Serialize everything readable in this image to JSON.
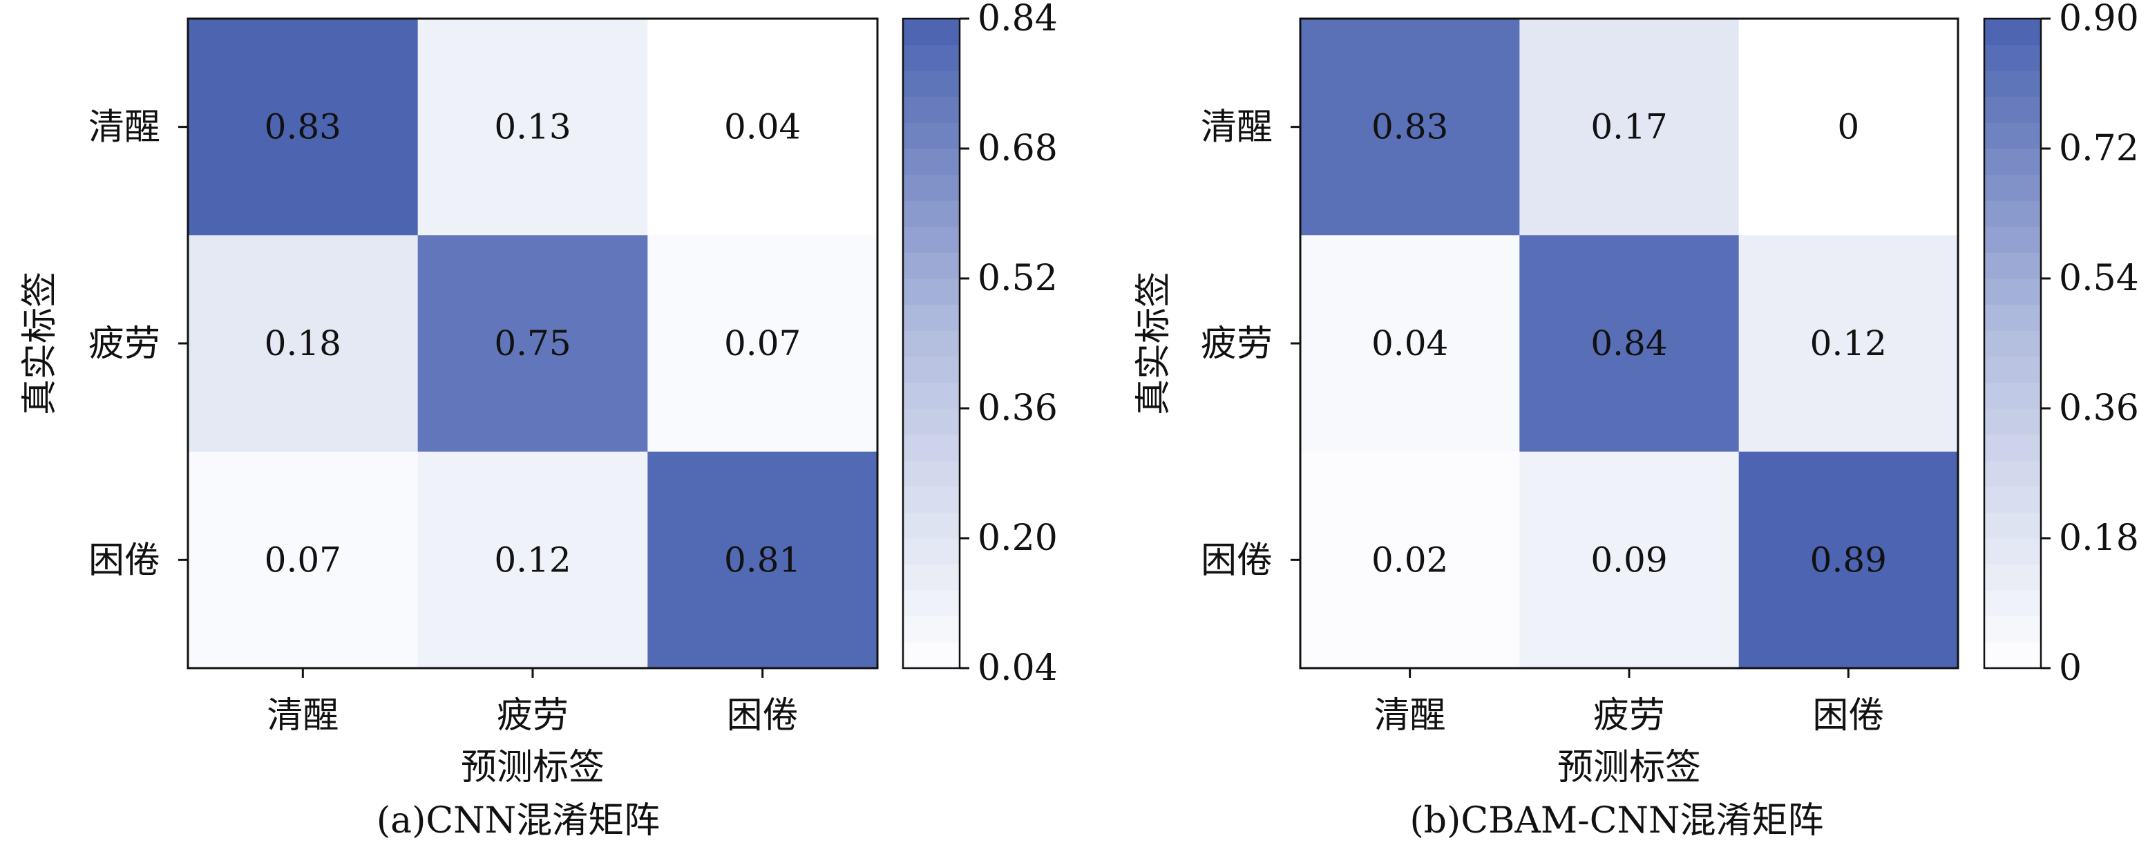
{
  "chart_data": [
    {
      "type": "heatmap",
      "caption": "(a)CNN混淆矩阵",
      "xlabel": "预测标签",
      "ylabel": "真实标签",
      "x_categories": [
        "清醒",
        "疲劳",
        "困倦"
      ],
      "y_categories": [
        "清醒",
        "疲劳",
        "困倦"
      ],
      "values": [
        [
          0.83,
          0.13,
          0.04
        ],
        [
          0.18,
          0.75,
          0.07
        ],
        [
          0.07,
          0.12,
          0.81
        ]
      ],
      "value_labels": [
        [
          "0.83",
          "0.13",
          "0.04"
        ],
        [
          "0.18",
          "0.75",
          "0.07"
        ],
        [
          "0.07",
          "0.12",
          "0.81"
        ]
      ],
      "colorbar": {
        "min": 0.04,
        "max": 0.84,
        "ticks": [
          "0.04",
          "0.20",
          "0.36",
          "0.52",
          "0.68",
          "0.84"
        ]
      },
      "colormap": [
        "#ffffff",
        "#b4bfe0",
        "#4a62b0"
      ]
    },
    {
      "type": "heatmap",
      "caption": "(b)CBAM-CNN混淆矩阵",
      "xlabel": "预测标签",
      "ylabel": "真实标签",
      "x_categories": [
        "清醒",
        "疲劳",
        "困倦"
      ],
      "y_categories": [
        "清醒",
        "疲劳",
        "困倦"
      ],
      "values": [
        [
          0.83,
          0.17,
          0
        ],
        [
          0.04,
          0.84,
          0.12
        ],
        [
          0.02,
          0.09,
          0.89
        ]
      ],
      "value_labels": [
        [
          "0.83",
          "0.17",
          "0"
        ],
        [
          "0.04",
          "0.84",
          "0.12"
        ],
        [
          "0.02",
          "0.09",
          "0.89"
        ]
      ],
      "colorbar": {
        "min": 0,
        "max": 0.9,
        "ticks": [
          "0",
          "0.18",
          "0.36",
          "0.54",
          "0.72",
          "0.90"
        ]
      },
      "colormap": [
        "#ffffff",
        "#b4bfe0",
        "#4a62b0"
      ]
    }
  ]
}
